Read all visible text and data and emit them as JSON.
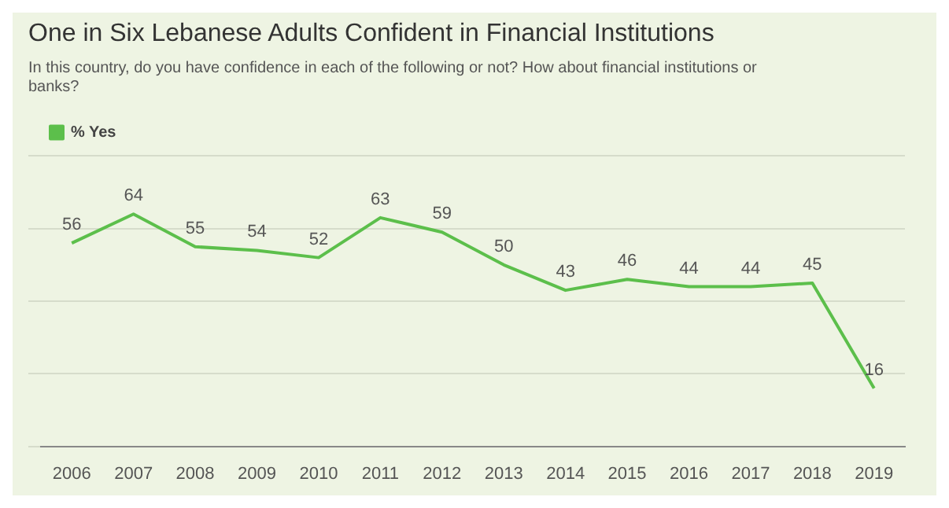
{
  "chart_data": {
    "type": "line",
    "title": "One in Six Lebanese Adults Confident in Financial Institutions",
    "subtitle": "In this country, do you have confidence in each of the following or not? How about financial institutions or banks?",
    "categories": [
      "2006",
      "2007",
      "2008",
      "2009",
      "2010",
      "2011",
      "2012",
      "2013",
      "2014",
      "2015",
      "2016",
      "2017",
      "2018",
      "2019"
    ],
    "series": [
      {
        "name": "% Yes",
        "color": "#5cbf4b",
        "values": [
          56,
          64,
          55,
          54,
          52,
          63,
          59,
          50,
          43,
          46,
          44,
          44,
          45,
          16
        ]
      }
    ],
    "data_labels": true,
    "legend": "top left",
    "grid": "y",
    "tick_labels": "x",
    "marker": "none",
    "line_style": "solid"
  }
}
